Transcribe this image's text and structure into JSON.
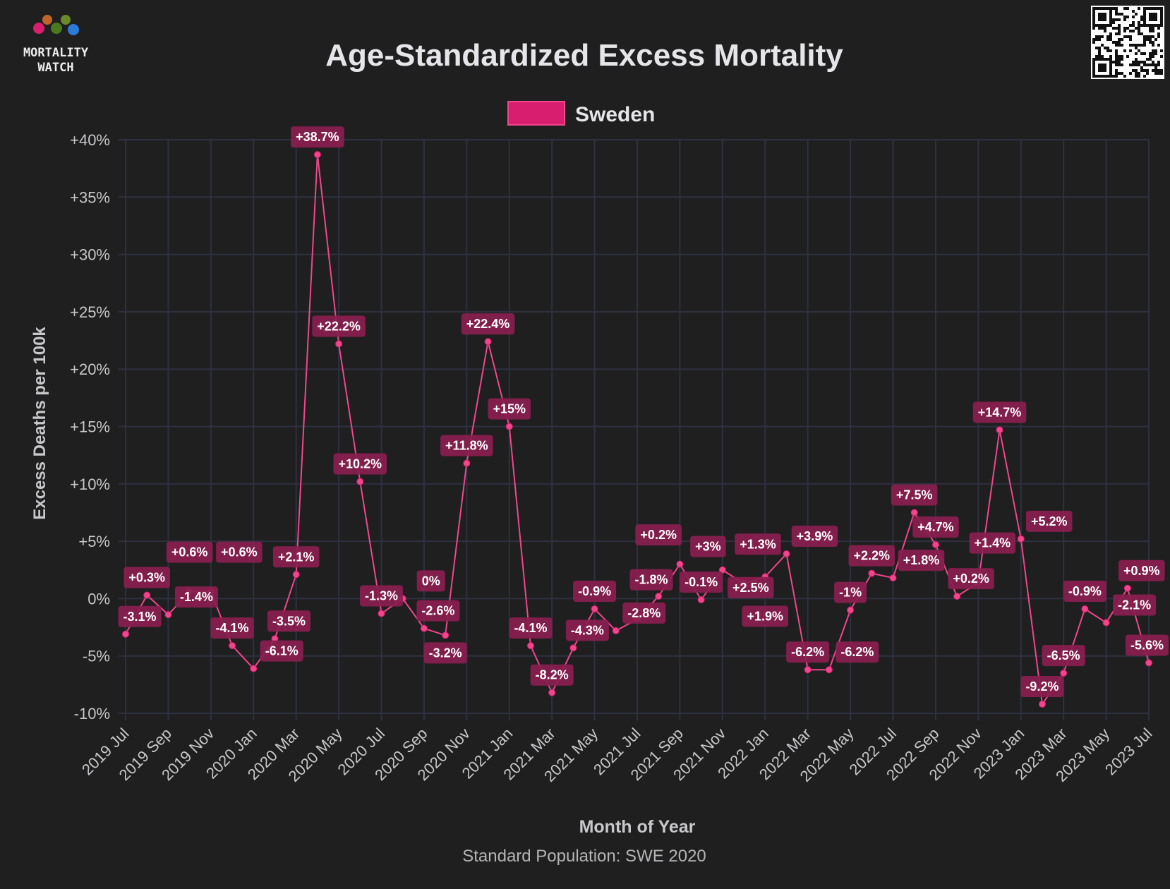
{
  "logo": {
    "line1": "MORTALITY",
    "line2": "WATCH"
  },
  "chart_data": {
    "type": "line",
    "title": "Age-Standardized Excess Mortality",
    "subtitle": "Standard Population: SWE 2020",
    "xlabel": "Month of Year",
    "ylabel": "Excess Deaths per 100k",
    "ylim": [
      -10,
      40
    ],
    "yticks": [
      "-10%",
      "-5%",
      "0%",
      "+5%",
      "+10%",
      "+15%",
      "+20%",
      "+25%",
      "+30%",
      "+35%",
      "+40%"
    ],
    "ytick_values": [
      -10,
      -5,
      0,
      5,
      10,
      15,
      20,
      25,
      30,
      35,
      40
    ],
    "grid": true,
    "legend_position": "top-center",
    "colors": {
      "line": "#f0468c",
      "label_bg": "#8a1e4f",
      "legend_fill": "#d81e6e",
      "background": "#1f1f1f",
      "grid": "#2e3140"
    },
    "x": [
      "2019 Jul",
      "2019 Aug",
      "2019 Sep",
      "2019 Oct",
      "2019 Nov",
      "2019 Dec",
      "2020 Jan",
      "2020 Feb",
      "2020 Mar",
      "2020 Apr",
      "2020 May",
      "2020 Jun",
      "2020 Jul",
      "2020 Aug",
      "2020 Sep",
      "2020 Oct",
      "2020 Nov",
      "2020 Dec",
      "2021 Jan",
      "2021 Feb",
      "2021 Mar",
      "2021 Apr",
      "2021 May",
      "2021 Jun",
      "2021 Jul",
      "2021 Aug",
      "2021 Sep",
      "2021 Oct",
      "2021 Nov",
      "2021 Dec",
      "2022 Jan",
      "2022 Feb",
      "2022 Mar",
      "2022 Apr",
      "2022 May",
      "2022 Jun",
      "2022 Jul",
      "2022 Aug",
      "2022 Sep",
      "2022 Oct",
      "2022 Nov",
      "2022 Dec",
      "2023 Jan",
      "2023 Feb",
      "2023 Mar",
      "2023 Apr",
      "2023 May",
      "2023 Jun",
      "2023 Jul"
    ],
    "xtick_labels": [
      "2019 Jul",
      "2019 Sep",
      "2019 Nov",
      "2020 Jan",
      "2020 Mar",
      "2020 May",
      "2020 Jul",
      "2020 Sep",
      "2020 Nov",
      "2021 Jan",
      "2021 Mar",
      "2021 May",
      "2021 Jul",
      "2021 Sep",
      "2021 Nov",
      "2022 Jan",
      "2022 Mar",
      "2022 May",
      "2022 Jul",
      "2022 Sep",
      "2022 Nov",
      "2023 Jan",
      "2023 Mar",
      "2023 May",
      "2023 Jul"
    ],
    "series": [
      {
        "name": "Sweden",
        "values": [
          -3.1,
          0.3,
          -1.4,
          0.6,
          0.6,
          -4.1,
          -6.1,
          -3.5,
          2.1,
          38.7,
          22.2,
          10.2,
          -1.3,
          0,
          -2.6,
          -3.2,
          11.8,
          22.4,
          15,
          -4.1,
          -8.2,
          -4.3,
          -0.9,
          -2.8,
          -1.8,
          0.2,
          3,
          -0.1,
          2.5,
          1.3,
          1.9,
          3.9,
          -6.2,
          -6.2,
          -1,
          2.2,
          1.8,
          7.5,
          4.7,
          0.2,
          1.4,
          14.7,
          5.2,
          -9.2,
          -6.5,
          -0.9,
          -2.1,
          0.9,
          -5.6
        ],
        "labels": [
          "-3.1%",
          "+0.3%",
          "-1.4%",
          "+0.6%",
          "+0.6%",
          "-4.1%",
          "-6.1%",
          "-3.5%",
          "+2.1%",
          "+38.7%",
          "+22.2%",
          "+10.2%",
          "-1.3%",
          "0%",
          "-2.6%",
          "-3.2%",
          "+11.8%",
          "+22.4%",
          "+15%",
          "-4.1%",
          "-8.2%",
          "-4.3%",
          "-0.9%",
          "-2.8%",
          "-1.8%",
          "+0.2%",
          "+3%",
          "-0.1%",
          "+2.5%",
          "+1.3%",
          "+1.9%",
          "+3.9%",
          "-6.2%",
          "-6.2%",
          "-1%",
          "+2.2%",
          "+1.8%",
          "+7.5%",
          "+4.7%",
          "+0.2%",
          "+1.4%",
          "+14.7%",
          "+5.2%",
          "-9.2%",
          "-6.5%",
          "-0.9%",
          "-2.1%",
          "+0.9%",
          "-5.6%"
        ]
      }
    ]
  }
}
